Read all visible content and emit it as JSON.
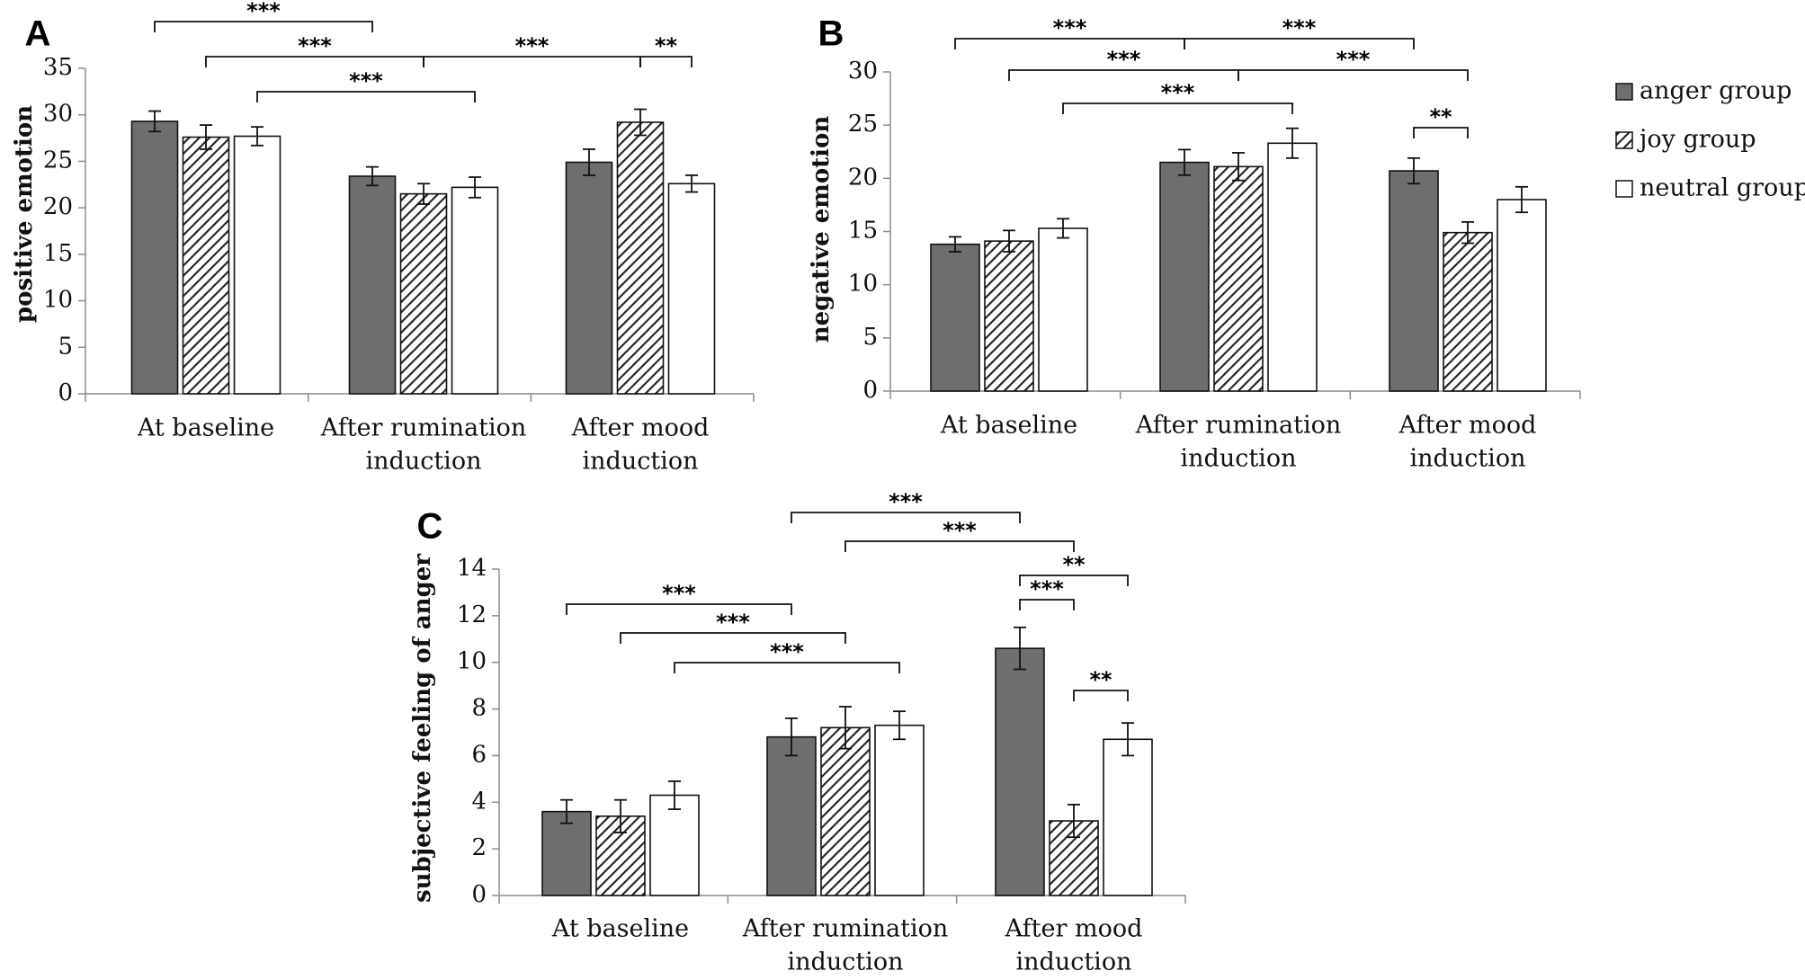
{
  "chart_data": [
    {
      "panel_label": "A",
      "type": "bar",
      "ylabel": "positive emotion",
      "ylim": [
        0,
        35
      ],
      "yticks": [
        0,
        5,
        10,
        15,
        20,
        25,
        30,
        35
      ],
      "categories": [
        [
          "At baseline"
        ],
        [
          "After rumination",
          "induction"
        ],
        [
          "After mood",
          "induction"
        ]
      ],
      "series": [
        {
          "name": "anger group",
          "values": [
            29.3,
            23.4,
            24.9
          ],
          "errors": [
            1.1,
            1.0,
            1.4
          ]
        },
        {
          "name": "joy group",
          "values": [
            27.6,
            21.5,
            29.2
          ],
          "errors": [
            1.3,
            1.1,
            1.4
          ]
        },
        {
          "name": "neutral group",
          "values": [
            27.7,
            22.2,
            22.6
          ],
          "errors": [
            1.0,
            1.1,
            0.9
          ]
        }
      ],
      "significance": [
        {
          "from": [
            0,
            0
          ],
          "to": [
            1,
            0
          ],
          "label": "***"
        },
        {
          "from": [
            0,
            1
          ],
          "to": [
            1,
            1
          ],
          "label": "***"
        },
        {
          "from": [
            0,
            2
          ],
          "to": [
            1,
            2
          ],
          "label": "***"
        },
        {
          "from": [
            1,
            1
          ],
          "to": [
            2,
            1
          ],
          "label": "***"
        },
        {
          "from": [
            2,
            1
          ],
          "to": [
            2,
            2
          ],
          "label": "**"
        }
      ]
    },
    {
      "panel_label": "B",
      "type": "bar",
      "ylabel": "negative emotion",
      "ylim": [
        0,
        30
      ],
      "yticks": [
        0,
        5,
        10,
        15,
        20,
        25,
        30
      ],
      "categories": [
        [
          "At baseline"
        ],
        [
          "After rumination",
          "induction"
        ],
        [
          "After mood",
          "induction"
        ]
      ],
      "series": [
        {
          "name": "anger group",
          "values": [
            13.8,
            21.5,
            20.7
          ],
          "errors": [
            0.7,
            1.2,
            1.2
          ]
        },
        {
          "name": "joy group",
          "values": [
            14.1,
            21.1,
            14.9
          ],
          "errors": [
            1.0,
            1.3,
            1.0
          ]
        },
        {
          "name": "neutral group",
          "values": [
            15.3,
            23.3,
            18.0
          ],
          "errors": [
            0.9,
            1.4,
            1.2
          ]
        }
      ],
      "significance": [
        {
          "from": [
            0,
            0
          ],
          "to": [
            1,
            0
          ],
          "label": "***"
        },
        {
          "from": [
            0,
            1
          ],
          "to": [
            1,
            1
          ],
          "label": "***"
        },
        {
          "from": [
            0,
            2
          ],
          "to": [
            1,
            2
          ],
          "label": "***"
        },
        {
          "from": [
            1,
            0
          ],
          "to": [
            2,
            0
          ],
          "label": "***"
        },
        {
          "from": [
            1,
            1
          ],
          "to": [
            2,
            1
          ],
          "label": "***"
        },
        {
          "from": [
            2,
            0
          ],
          "to": [
            2,
            1
          ],
          "label": "**"
        }
      ]
    },
    {
      "panel_label": "C",
      "type": "bar",
      "ylabel": "subjective feeling of anger",
      "ylim": [
        0,
        14
      ],
      "yticks": [
        0,
        2,
        4,
        6,
        8,
        10,
        12,
        14
      ],
      "categories": [
        [
          "At baseline"
        ],
        [
          "After rumination",
          "induction"
        ],
        [
          "After mood",
          "induction"
        ]
      ],
      "series": [
        {
          "name": "anger group",
          "values": [
            3.6,
            6.8,
            10.6
          ],
          "errors": [
            0.5,
            0.8,
            0.9
          ]
        },
        {
          "name": "joy group",
          "values": [
            3.4,
            7.2,
            3.2
          ],
          "errors": [
            0.7,
            0.9,
            0.7
          ]
        },
        {
          "name": "neutral group",
          "values": [
            4.3,
            7.3,
            6.7
          ],
          "errors": [
            0.6,
            0.6,
            0.7
          ]
        }
      ],
      "significance": [
        {
          "from": [
            0,
            0
          ],
          "to": [
            1,
            0
          ],
          "label": "***"
        },
        {
          "from": [
            0,
            1
          ],
          "to": [
            1,
            1
          ],
          "label": "***"
        },
        {
          "from": [
            0,
            2
          ],
          "to": [
            1,
            2
          ],
          "label": "***"
        },
        {
          "from": [
            1,
            0
          ],
          "to": [
            2,
            0
          ],
          "label": "***"
        },
        {
          "from": [
            1,
            1
          ],
          "to": [
            2,
            1
          ],
          "label": "***"
        },
        {
          "from": [
            2,
            0
          ],
          "to": [
            2,
            1
          ],
          "label": "***"
        },
        {
          "from": [
            2,
            0
          ],
          "to": [
            2,
            2
          ],
          "label": "**"
        },
        {
          "from": [
            2,
            1
          ],
          "to": [
            2,
            2
          ],
          "label": "**"
        }
      ]
    }
  ],
  "legend": [
    {
      "name": "anger group",
      "pattern": "solid"
    },
    {
      "name": "joy group",
      "pattern": "hatched"
    },
    {
      "name": "neutral group",
      "pattern": "empty"
    }
  ],
  "colors": {
    "anger": "#6e6e6e",
    "hatch": "#222222",
    "neutral": "#ffffff",
    "axis": "#8c8c8c"
  }
}
